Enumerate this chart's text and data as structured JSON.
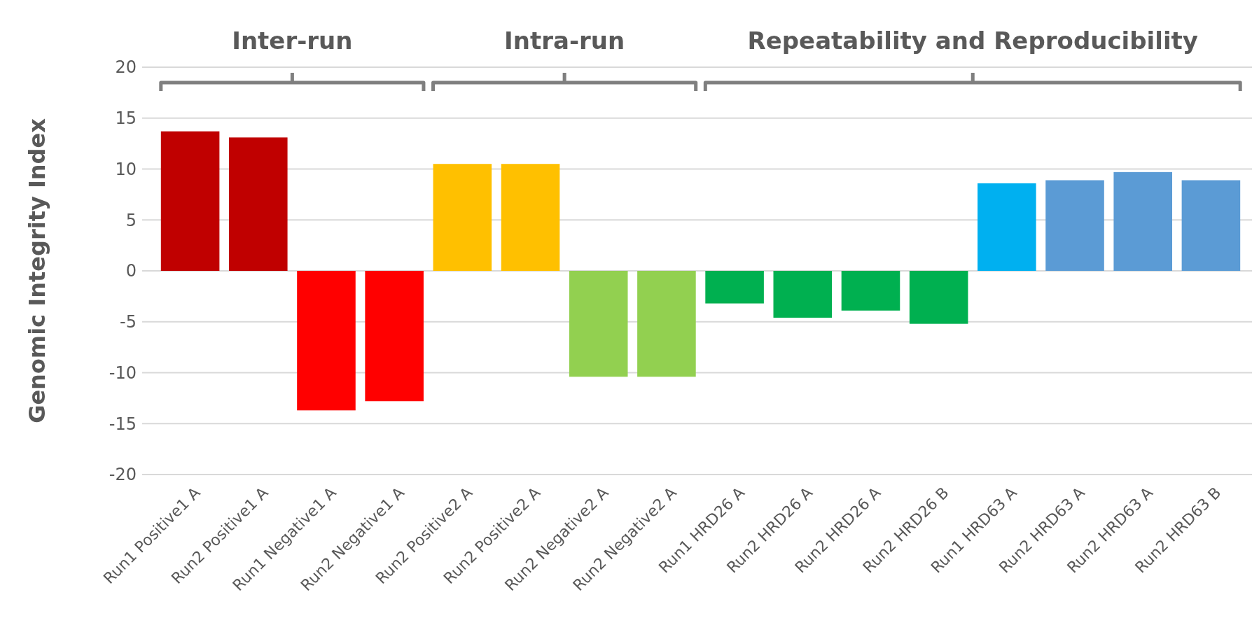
{
  "chart_data": {
    "type": "bar",
    "ylabel": "Genomic Integrity Index",
    "categories": [
      "Run1 Positive1 A",
      "Run2 Positive1 A",
      "Run1 Negative1 A",
      "Run2 Negative1 A",
      "Run2 Positive2 A",
      "Run2 Positive2 A",
      "Run2 Negative2 A",
      "Run2 Negative2 A",
      "Run1 HRD26 A",
      "Run2 HRD26 A",
      "Run2 HRD26 A",
      "Run2 HRD26 B",
      "Run1 HRD63 A",
      "Run2 HRD63 A",
      "Run2 HRD63 A",
      "Run2 HRD63 B"
    ],
    "values": [
      13.7,
      13.1,
      -13.7,
      -12.8,
      10.5,
      10.5,
      -10.4,
      -10.4,
      -3.2,
      -4.6,
      -3.9,
      -5.2,
      8.6,
      8.9,
      9.7,
      8.9
    ],
    "colors": [
      "#c00000",
      "#c00000",
      "#ff0000",
      "#ff0000",
      "#ffc000",
      "#ffc000",
      "#92d050",
      "#92d050",
      "#00b050",
      "#00b050",
      "#00b050",
      "#00b050",
      "#00b0f0",
      "#5b9bd5",
      "#5b9bd5",
      "#5b9bd5"
    ],
    "ylim": [
      -20,
      20
    ],
    "yticks": [
      -20,
      -15,
      -10,
      -5,
      0,
      5,
      10,
      15,
      20
    ],
    "grid": "y",
    "annotations": [
      "Inter-run",
      "Intra-run",
      "Repeatability and Reproducibility"
    ]
  }
}
